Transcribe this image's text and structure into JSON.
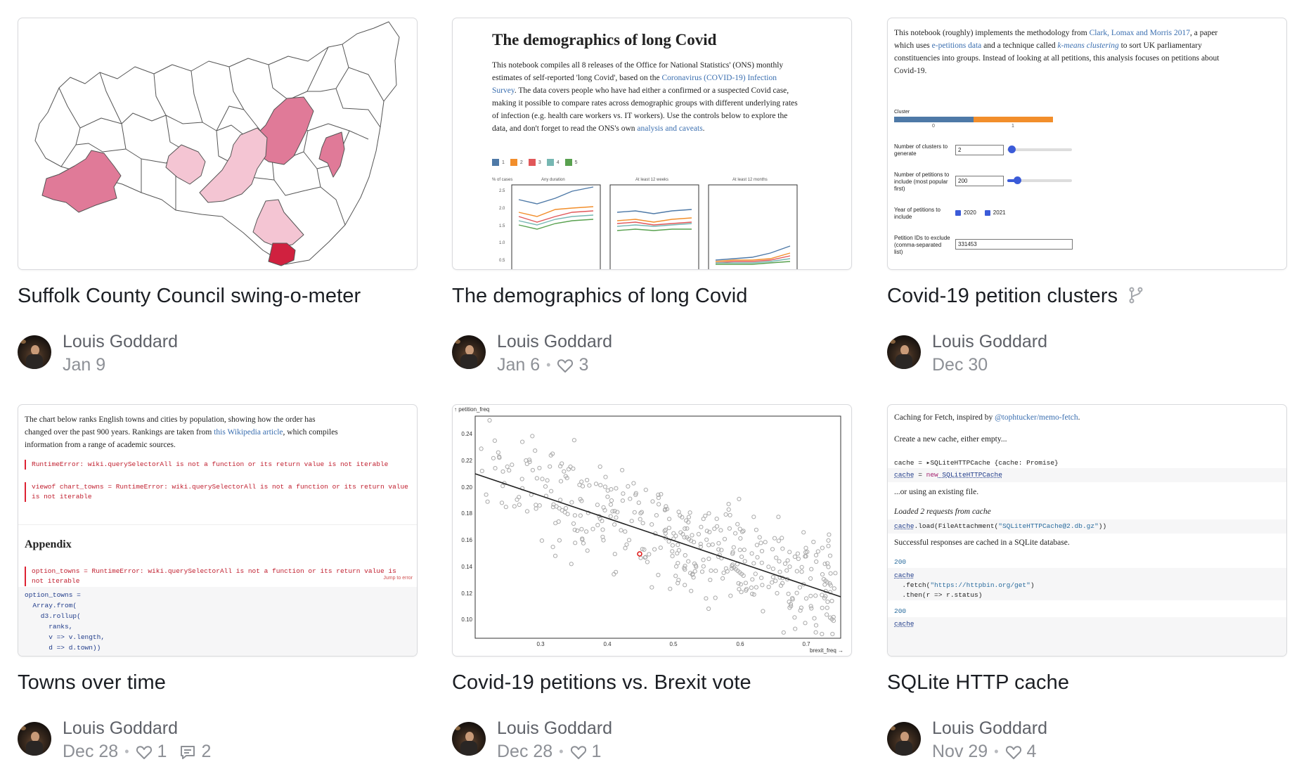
{
  "notebooks": [
    {
      "title": "Suffolk County Council swing-o-meter",
      "author": "Louis Goddard",
      "date": "Jan 9",
      "likes": null,
      "comments": null,
      "forked": false
    },
    {
      "title": "The demographics of long Covid",
      "author": "Louis Goddard",
      "date": "Jan 6",
      "likes": "3",
      "comments": null,
      "forked": false,
      "preview": {
        "heading": "The demographics of long Covid",
        "para_1": "This notebook compiles all 8 releases of the Office for National Statistics' (ONS) monthly estimates of self-reported 'long Covid', based on the ",
        "link_1": "Coronavirus (COVID-19) Infection Survey",
        "para_2": ". The data covers people who have had either a confirmed or a suspected Covid case, making it possible to compare rates across demographic groups with different underlying rates of infection (e.g. health care workers vs. IT workers). Use the controls below to explore the data, and don't forget to read the ONS's own ",
        "link_2": "analysis and caveats",
        "para_3": ".",
        "legend": [
          "1",
          "2",
          "3",
          "4",
          "5"
        ],
        "y_label": "% of cases",
        "panel_titles": [
          "Any duration",
          "At least 12 weeks",
          "At least 12 months"
        ],
        "y_ticks": [
          "2.5",
          "2.0",
          "1.5",
          "1.0",
          "0.5"
        ]
      }
    },
    {
      "title": "Covid-19 petition clusters",
      "author": "Louis Goddard",
      "date": "Dec 30",
      "likes": null,
      "comments": null,
      "forked": true,
      "preview": {
        "intro_1": "This notebook (roughly) implements the methodology from ",
        "link_1": "Clark, Lomax and Morris 2017",
        "intro_2": ", a paper which uses ",
        "link_2": "e-petitions data",
        "intro_3": " and a technique called ",
        "link_3": "k-means clustering",
        "intro_4": " to sort UK parliamentary constituencies into groups. Instead of looking at all petitions, this analysis focuses on petitions about Covid-19.",
        "cluster_label": "Cluster",
        "cluster_ticks": [
          "0",
          "1"
        ],
        "f1_label": "Number of clusters to generate",
        "f1_value": "2",
        "f2_label": "Number of petitions to include (most popular first)",
        "f2_value": "200",
        "f3_label": "Year of petitions to include",
        "f3_opt1": "2020",
        "f3_opt2": "2021",
        "f4_label": "Petition IDs to exclude (comma-separated list)",
        "f4_value": "331453"
      }
    },
    {
      "title": "Towns over time",
      "author": "Louis Goddard",
      "date": "Dec 28",
      "likes": "1",
      "comments": "2",
      "forked": false,
      "preview": {
        "intro_1": "The chart below ranks English towns and cities by population, showing how the order has changed over the past 900 years. Rankings are taken from ",
        "link": "this Wikipedia article",
        "intro_2": ", which compiles information from a range of academic sources.",
        "error_1": "RuntimeError: wiki.querySelectorAll is not a function or its return value is not iterable",
        "error_2": "viewof chart_towns = RuntimeError: wiki.querySelectorAll is not a function or its return value is not iterable",
        "appendix": "Appendix",
        "error_3": "option_towns = RuntimeError: wiki.querySelectorAll is not a function or its return value is not iterable",
        "jump": "Jump to error",
        "code": [
          "option_towns =",
          "  Array.from(",
          "    d3.rollup(",
          "      ranks,",
          "      v => v.length,",
          "      d => d.town))"
        ]
      }
    },
    {
      "title": "Covid-19 petitions vs. Brexit vote",
      "author": "Louis Goddard",
      "date": "Dec 28",
      "likes": "1",
      "comments": null,
      "forked": false,
      "preview": {
        "y_label": "↑ petition_freq",
        "x_label": "brexit_freq →",
        "y_ticks": [
          "0.24",
          "0.22",
          "0.20",
          "0.18",
          "0.16",
          "0.14",
          "0.12",
          "0.10"
        ],
        "x_ticks": [
          "0.3",
          "0.4",
          "0.5",
          "0.6",
          "0.7"
        ]
      }
    },
    {
      "title": "SQLite HTTP cache",
      "author": "Louis Goddard",
      "date": "Nov 29",
      "likes": "4",
      "comments": null,
      "forked": false,
      "preview": {
        "line_1a": "Caching for Fetch, inspired by ",
        "line_1b": "@tophtucker/memo-fetch",
        "line_1c": ".",
        "line_2": "Create a new cache, either empty...",
        "code_1": "cache = ▸SQLiteHTTPCache {cache: Promise}",
        "code_2a": "cache",
        "code_2b": " = ",
        "code_2c": "new",
        "code_2d": " SQLiteHTTPCache",
        "line_3": "...or using an existing file.",
        "line_4": "Loaded 2 requests from cache",
        "code_3a": "cache",
        "code_3b": ".load(FileAttachment(",
        "code_3c": "\"SQLiteHTTPCache@2.db.gz\"",
        "code_3d": "))",
        "line_5": "Successful responses are cached in a SQLite database.",
        "out_1": "200",
        "code_4a": "cache",
        "code_4b": "  .fetch(",
        "code_4c": "\"https://httpbin.org/get\"",
        "code_4d": ")",
        "code_4e": "  .then(r => r.status)",
        "out_2": "200",
        "code_5": "cache"
      }
    }
  ],
  "colors": {
    "accent_link": "#3b6fb0",
    "error_red": "#c01e2e",
    "map_pink": "#e07a98",
    "map_light": "#f4c5d3",
    "map_dark": "#d0213f"
  }
}
